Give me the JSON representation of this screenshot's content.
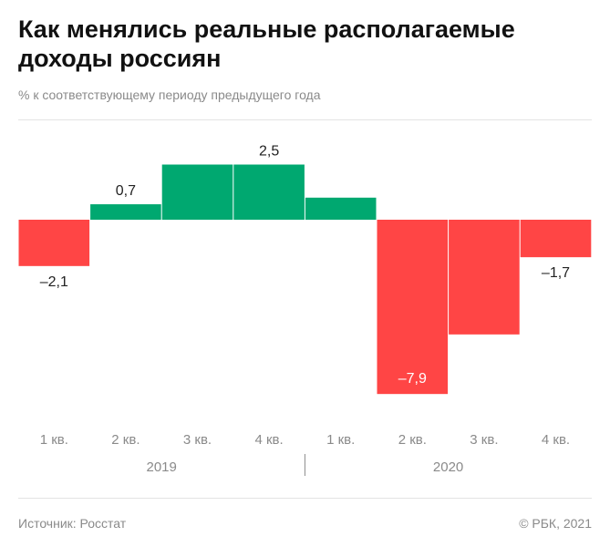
{
  "title": "Как менялись реальные располагаемые доходы россиян",
  "subtitle": "% к соответствующему периоду предыдущего года",
  "source": "Источник: Росстат",
  "copyright": "© РБК, 2021",
  "colors": {
    "positive": "#00a870",
    "negative": "#ff4545"
  },
  "chart_data": {
    "type": "bar",
    "categories": [
      "1 кв.",
      "2 кв.",
      "3 кв.",
      "4 кв.",
      "1 кв.",
      "2 кв.",
      "3 кв.",
      "4 кв."
    ],
    "groups": [
      {
        "label": "2019",
        "categories": [
          0,
          1,
          2,
          3
        ]
      },
      {
        "label": "2020",
        "categories": [
          4,
          5,
          6,
          7
        ]
      }
    ],
    "values": [
      -2.1,
      0.7,
      2.5,
      2.5,
      1.0,
      -7.9,
      -5.2,
      -1.7
    ],
    "data_labels": [
      "–2,1",
      "0,7",
      "",
      "2,5",
      "",
      "–7,9",
      "",
      "–1,7"
    ],
    "ylim": [
      -8.2,
      4.4
    ],
    "grid": false
  }
}
